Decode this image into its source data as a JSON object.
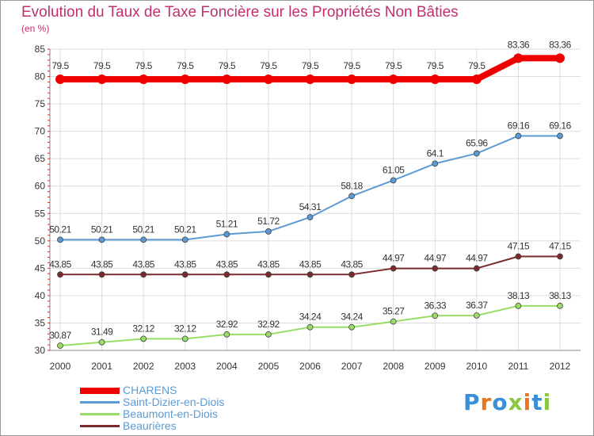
{
  "title": "Evolution du Taux de Taxe Foncière sur les Propriétés Non Bâties",
  "subtitle": "(en %)",
  "logo": {
    "letters": [
      "P",
      "r",
      "o",
      "x",
      "i",
      "t",
      "i"
    ],
    "colors": [
      "#3a8fd6",
      "#e8761d",
      "#3a8fd6",
      "#8dc63f",
      "#e8761d",
      "#3a8fd6",
      "#8dc63f"
    ]
  },
  "chart_data": {
    "type": "line",
    "categories": [
      "2000",
      "2001",
      "2002",
      "2003",
      "2004",
      "2005",
      "2006",
      "2007",
      "2008",
      "2009",
      "2010",
      "2011",
      "2012"
    ],
    "ylim": [
      30,
      85
    ],
    "yticks": [
      "30",
      "35",
      "40",
      "45",
      "50",
      "55",
      "60",
      "65",
      "70",
      "75",
      "80",
      "85"
    ],
    "grid": true,
    "series": [
      {
        "name": "CHARENS",
        "color": "#ee0000",
        "values": [
          79.5,
          79.5,
          79.5,
          79.5,
          79.5,
          79.5,
          79.5,
          79.5,
          79.5,
          79.5,
          79.5,
          83.36,
          83.36
        ],
        "labels": [
          "79.5",
          "79.5",
          "79.5",
          "79.5",
          "79.5",
          "79.5",
          "79.5",
          "79.5",
          "79.5",
          "79.5",
          "79.5",
          "83.36",
          "83.36"
        ]
      },
      {
        "name": "Saint-Dizier-en-Diois",
        "color": "#5b9bd5",
        "values": [
          50.21,
          50.21,
          50.21,
          50.21,
          51.21,
          51.72,
          54.31,
          58.18,
          61.05,
          64.1,
          65.96,
          69.16,
          69.16
        ],
        "labels": [
          "50.21",
          "50.21",
          "50.21",
          "50.21",
          "51.21",
          "51.72",
          "54.31",
          "58.18",
          "61.05",
          "64.1",
          "65.96",
          "69.16",
          "69.16"
        ]
      },
      {
        "name": "Beaumont-en-Diois",
        "color": "#99dd66",
        "values": [
          30.87,
          31.49,
          32.12,
          32.12,
          32.92,
          32.92,
          34.24,
          34.24,
          35.27,
          36.33,
          36.37,
          38.13,
          38.13
        ],
        "labels": [
          "30.87",
          "31.49",
          "32.12",
          "32.12",
          "32.92",
          "32.92",
          "34.24",
          "34.24",
          "35.27",
          "36.33",
          "36.37",
          "38.13",
          "38.13"
        ]
      },
      {
        "name": "Beaurières",
        "color": "#7a2a2a",
        "values": [
          43.85,
          43.85,
          43.85,
          43.85,
          43.85,
          43.85,
          43.85,
          43.85,
          44.97,
          44.97,
          44.97,
          47.15,
          47.15
        ],
        "labels": [
          "43.85",
          "43.85",
          "43.85",
          "43.85",
          "43.85",
          "43.85",
          "43.85",
          "43.85",
          "44.97",
          "44.97",
          "44.97",
          "47.15",
          "47.15"
        ]
      }
    ]
  }
}
